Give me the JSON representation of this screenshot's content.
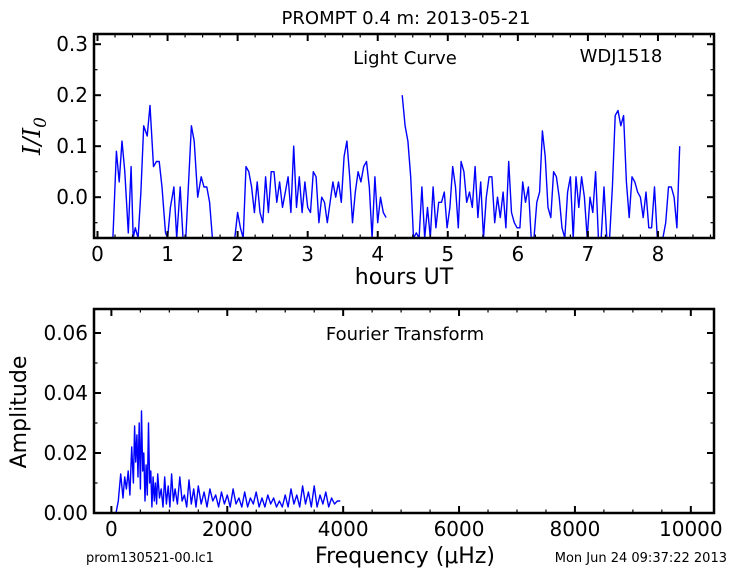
{
  "figure": {
    "title": "PROMPT 0.4 m:  2013-05-21",
    "footer_left": "prom130521-00.lc1",
    "footer_right": "Mon Jun 24 09:37:22 2013"
  },
  "chart_data": [
    {
      "type": "line",
      "title": "Light Curve",
      "annotation": "WDJ1518",
      "xlabel": "hours UT",
      "ylabel": "I/I0",
      "xlim": [
        -0.05,
        8.8
      ],
      "ylim": [
        -0.08,
        0.32
      ],
      "xticks": [
        0,
        1,
        2,
        3,
        4,
        5,
        6,
        7,
        8
      ],
      "yticks": [
        0.0,
        0.1,
        0.2,
        0.3
      ],
      "ytick_labels": [
        "0.0",
        "0.1",
        "0.2",
        "0.3"
      ],
      "grid": false,
      "line_color": "#0000ff",
      "series": [
        {
          "x": [
            0.22,
            0.27,
            0.31,
            0.35,
            0.39,
            0.44,
            0.48,
            0.51,
            0.54,
            0.58,
            0.62,
            0.66,
            0.71,
            0.75,
            0.8,
            0.84,
            0.88,
            0.92,
            0.97,
            1.0,
            1.04,
            1.09,
            1.13,
            1.18,
            1.22,
            1.26,
            1.3,
            1.34,
            1.38,
            1.43,
            1.48,
            1.52,
            1.56,
            1.6,
            1.64,
            1.68,
            1.72,
            1.76,
            1.8,
            1.84,
            1.88,
            1.92,
            1.96,
            2.0,
            2.04,
            2.08,
            2.12,
            2.16,
            2.2,
            2.24,
            2.28,
            2.32,
            2.36,
            2.4,
            2.44,
            2.48,
            2.52,
            2.56,
            2.6,
            2.64,
            2.68,
            2.72,
            2.76,
            2.8,
            2.84,
            2.88,
            2.92,
            2.96,
            3.0,
            3.04,
            3.08,
            3.12,
            3.16,
            3.2,
            3.24,
            3.28,
            3.32,
            3.36,
            3.4,
            3.44,
            3.48,
            3.52,
            3.56,
            3.6,
            3.64,
            3.68,
            3.72,
            3.76,
            3.8,
            3.84,
            3.88,
            3.92,
            3.96,
            4.0,
            4.04,
            4.08,
            4.12
          ],
          "y": [
            -0.08,
            0.09,
            0.03,
            0.11,
            0.05,
            -0.07,
            0.06,
            -0.08,
            -0.06,
            -0.08,
            0.01,
            0.14,
            0.12,
            0.18,
            0.06,
            0.07,
            0.07,
            0.02,
            -0.07,
            -0.08,
            -0.02,
            0.02,
            -0.08,
            0.02,
            -0.08,
            -0.08,
            0.03,
            0.14,
            0.11,
            0.0,
            0.04,
            0.02,
            0.02,
            -0.01,
            -0.08,
            -0.08,
            -0.08,
            -0.08,
            -0.08,
            -0.08,
            -0.08,
            -0.08,
            -0.08,
            -0.03,
            -0.06,
            -0.08,
            0.06,
            0.05,
            0.02,
            -0.03,
            0.03,
            -0.03,
            -0.05,
            0.04,
            -0.03,
            0.05,
            0.05,
            -0.01,
            0.03,
            -0.02,
            0.01,
            0.04,
            -0.03,
            0.1,
            -0.02,
            0.04,
            -0.03,
            0.03,
            -0.02,
            -0.03,
            0.05,
            0.04,
            -0.05,
            0.0,
            -0.01,
            -0.05,
            -0.01,
            0.03,
            0.0,
            0.03,
            -0.01,
            0.08,
            0.11,
            0.04,
            -0.05,
            0.01,
            0.05,
            0.03,
            0.06,
            0.07,
            0.02,
            -0.08,
            0.04,
            -0.05,
            0.0,
            -0.03,
            -0.04
          ]
        },
        {
          "x": [
            4.35,
            4.39,
            4.43,
            4.47,
            4.51,
            4.55,
            4.59,
            4.63,
            4.67,
            4.71,
            4.75,
            4.79,
            4.83,
            4.87,
            4.91,
            4.95,
            4.99,
            5.03,
            5.07,
            5.11,
            5.15,
            5.19,
            5.23,
            5.27,
            5.31,
            5.35,
            5.39,
            5.43,
            5.47,
            5.51,
            5.55,
            5.59,
            5.63,
            5.67,
            5.71,
            5.75,
            5.79,
            5.83,
            5.87,
            5.91,
            5.95,
            5.99,
            6.03,
            6.07,
            6.11,
            6.15,
            6.19,
            6.23,
            6.27,
            6.31,
            6.35,
            6.39,
            6.43,
            6.47,
            6.51,
            6.55,
            6.59,
            6.63,
            6.67,
            6.71,
            6.75,
            6.79,
            6.83,
            6.87,
            6.91,
            6.95,
            6.99,
            7.03,
            7.07,
            7.11,
            7.15,
            7.19,
            7.23,
            7.27,
            7.31,
            7.35,
            7.39,
            7.43,
            7.47,
            7.51,
            7.55,
            7.59,
            7.63,
            7.67,
            7.71,
            7.75,
            7.79,
            7.83,
            7.87,
            7.91,
            7.95,
            7.99,
            8.03,
            8.07,
            8.11,
            8.15,
            8.19,
            8.23,
            8.27,
            8.31
          ],
          "y": [
            0.2,
            0.14,
            0.11,
            0.04,
            -0.08,
            -0.07,
            -0.08,
            0.02,
            -0.08,
            -0.02,
            -0.08,
            0.02,
            -0.06,
            -0.01,
            -0.01,
            0.01,
            -0.06,
            -0.02,
            0.06,
            0.02,
            -0.06,
            0.07,
            0.05,
            -0.01,
            0.01,
            -0.02,
            0.06,
            -0.04,
            0.03,
            -0.08,
            0.0,
            0.04,
            0.04,
            -0.05,
            0.0,
            -0.04,
            0.01,
            -0.06,
            0.07,
            -0.03,
            -0.05,
            -0.06,
            -0.06,
            0.03,
            -0.01,
            0.02,
            -0.08,
            -0.08,
            -0.01,
            0.01,
            0.13,
            0.08,
            -0.02,
            -0.04,
            0.05,
            0.04,
            0.0,
            -0.06,
            -0.08,
            0.01,
            0.04,
            -0.08,
            0.04,
            -0.02,
            0.04,
            0.0,
            -0.08,
            0.0,
            -0.03,
            0.05,
            -0.08,
            -0.08,
            0.02,
            -0.08,
            -0.08,
            0.02,
            0.16,
            0.17,
            0.14,
            0.16,
            0.03,
            -0.04,
            0.04,
            0.03,
            0.01,
            0.0,
            -0.04,
            0.01,
            -0.06,
            -0.06,
            0.02,
            -0.08,
            -0.08,
            -0.08,
            -0.05,
            0.02,
            0.02,
            0.0,
            -0.06,
            0.1
          ]
        }
      ]
    },
    {
      "type": "line",
      "title": "Fourier Transform",
      "xlabel": "Frequency (μHz)",
      "ylabel": "Amplitude",
      "xlim": [
        -300,
        10400
      ],
      "ylim": [
        0,
        0.068
      ],
      "xticks": [
        0,
        2000,
        4000,
        6000,
        8000,
        10000
      ],
      "yticks": [
        0.0,
        0.02,
        0.04,
        0.06
      ],
      "ytick_labels": [
        "0.00",
        "0.02",
        "0.04",
        "0.06"
      ],
      "grid": false,
      "line_color": "#0000ff",
      "series": [
        {
          "x": [
            80,
            120,
            160,
            200,
            230,
            260,
            290,
            320,
            350,
            380,
            400,
            420,
            440,
            460,
            480,
            500,
            520,
            540,
            560,
            580,
            600,
            620,
            640,
            660,
            680,
            700,
            720,
            740,
            760,
            780,
            800,
            830,
            860,
            890,
            920,
            950,
            980,
            1010,
            1040,
            1070,
            1100,
            1140,
            1180,
            1220,
            1260,
            1300,
            1340,
            1380,
            1420,
            1460,
            1500,
            1550,
            1600,
            1650,
            1700,
            1750,
            1800,
            1850,
            1900,
            1950,
            2000,
            2050,
            2100,
            2150,
            2200,
            2250,
            2300,
            2350,
            2400,
            2450,
            2500,
            2550,
            2600,
            2650,
            2700,
            2750,
            2800,
            2850,
            2900,
            2950,
            3000,
            3050,
            3100,
            3150,
            3200,
            3250,
            3300,
            3350,
            3400,
            3450,
            3500,
            3550,
            3600,
            3650,
            3700,
            3750,
            3800,
            3850,
            3900,
            3950
          ],
          "y": [
            0.0,
            0.004,
            0.013,
            0.005,
            0.012,
            0.008,
            0.014,
            0.006,
            0.022,
            0.01,
            0.029,
            0.017,
            0.026,
            0.012,
            0.03,
            0.008,
            0.034,
            0.014,
            0.02,
            0.004,
            0.016,
            0.006,
            0.03,
            0.01,
            0.014,
            0.002,
            0.012,
            0.004,
            0.01,
            0.003,
            0.013,
            0.005,
            0.008,
            0.002,
            0.012,
            0.003,
            0.009,
            0.002,
            0.013,
            0.004,
            0.008,
            0.003,
            0.012,
            0.004,
            0.006,
            0.002,
            0.011,
            0.003,
            0.008,
            0.002,
            0.009,
            0.003,
            0.007,
            0.002,
            0.008,
            0.004,
            0.006,
            0.002,
            0.007,
            0.003,
            0.006,
            0.002,
            0.008,
            0.003,
            0.005,
            0.002,
            0.007,
            0.002,
            0.005,
            0.003,
            0.007,
            0.002,
            0.005,
            0.002,
            0.006,
            0.003,
            0.005,
            0.002,
            0.004,
            0.002,
            0.006,
            0.002,
            0.008,
            0.003,
            0.006,
            0.002,
            0.009,
            0.003,
            0.007,
            0.002,
            0.009,
            0.002,
            0.006,
            0.003,
            0.007,
            0.002,
            0.005,
            0.003,
            0.004,
            0.004
          ]
        }
      ]
    }
  ]
}
